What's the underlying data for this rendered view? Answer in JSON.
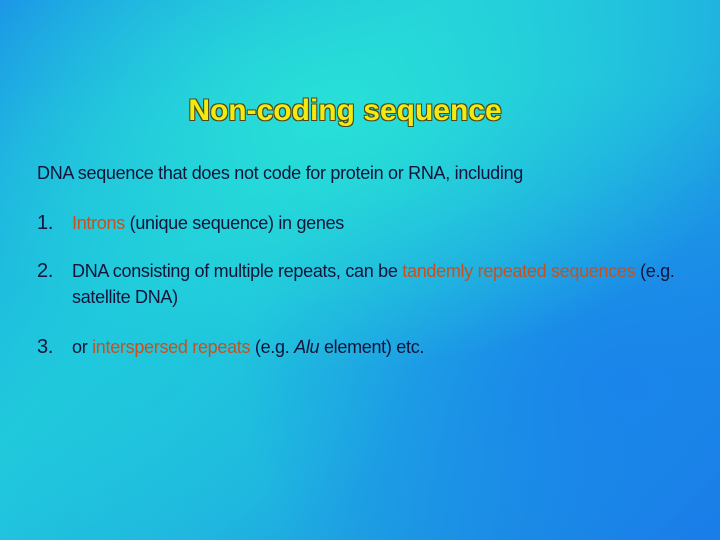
{
  "title": "Non-coding sequence",
  "intro": "DNA sequence that does not code for protein or RNA, including",
  "items": [
    {
      "number": "1.",
      "segments": [
        {
          "text": "Introns",
          "color": "#c8501e"
        },
        {
          "text": " (unique sequence) in genes"
        }
      ]
    },
    {
      "number": "2.",
      "segments": [
        {
          "text": "DNA consisting of multiple repeats, can be "
        },
        {
          "text": "tandemly repeated sequences",
          "color": "#c8501e"
        },
        {
          "text": " (e.g. satellite DNA)"
        }
      ]
    },
    {
      "number": "3.",
      "segments": [
        {
          "text": "or "
        },
        {
          "text": "interspersed repeats",
          "color": "#c8501e"
        },
        {
          "text": " (e.g. "
        },
        {
          "text": "Alu",
          "italic": true
        },
        {
          "text": " element) etc."
        }
      ]
    }
  ]
}
